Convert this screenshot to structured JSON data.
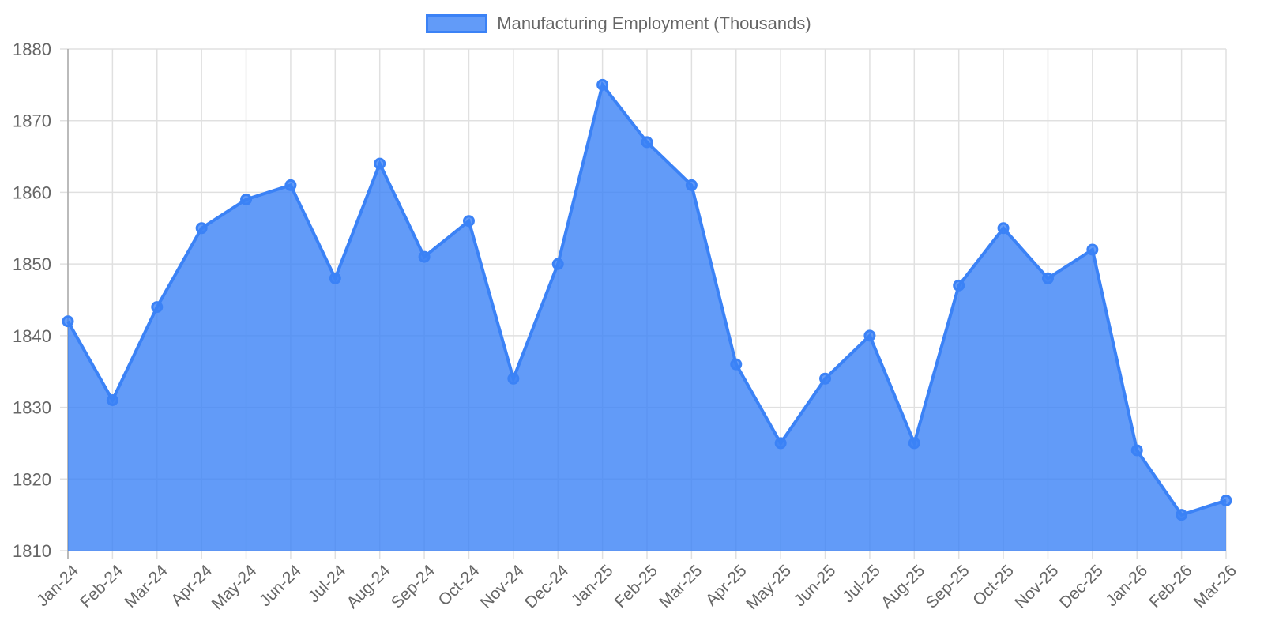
{
  "chart_data": {
    "type": "area",
    "title": "",
    "xlabel": "",
    "ylabel": "",
    "legend": [
      "Manufacturing Employment (Thousands)"
    ],
    "legend_position": "top",
    "grid": true,
    "ylim": [
      1810,
      1880
    ],
    "yticks": [
      1810,
      1820,
      1830,
      1840,
      1850,
      1860,
      1870,
      1880
    ],
    "categories": [
      "Jan-24",
      "Feb-24",
      "Mar-24",
      "Apr-24",
      "May-24",
      "Jun-24",
      "Jul-24",
      "Aug-24",
      "Sep-24",
      "Oct-24",
      "Nov-24",
      "Dec-24",
      "Jan-25",
      "Feb-25",
      "Mar-25",
      "Apr-25",
      "May-25",
      "Jun-25",
      "Jul-25",
      "Aug-25",
      "Sep-25",
      "Oct-25",
      "Nov-25",
      "Dec-25",
      "Jan-26",
      "Feb-26",
      "Mar-26"
    ],
    "series": [
      {
        "name": "Manufacturing Employment (Thousands)",
        "color": "#3b82f6",
        "values": [
          1842,
          1831,
          1844,
          1855,
          1859,
          1861,
          1848,
          1864,
          1851,
          1856,
          1834,
          1850,
          1875,
          1867,
          1861,
          1836,
          1825,
          1834,
          1840,
          1825,
          1847,
          1855,
          1848,
          1852,
          1824,
          1815,
          1817
        ]
      }
    ]
  },
  "legend": {
    "label": "Manufacturing Employment (Thousands)"
  }
}
